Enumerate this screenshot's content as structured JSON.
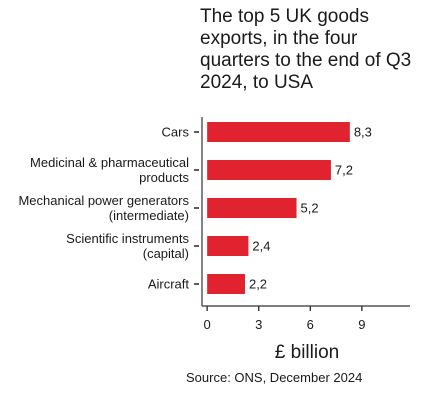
{
  "chart_data": {
    "type": "bar",
    "orientation": "horizontal",
    "title_lines": [
      "The top 5 UK goods",
      "exports, in the four",
      "quarters to the end of Q3",
      "2024, to USA"
    ],
    "categories": [
      [
        "Cars"
      ],
      [
        "Medicinal & pharmaceutical",
        "products"
      ],
      [
        "Mechanical power generators",
        "(intermediate)"
      ],
      [
        "Scientific instruments",
        "(capital)"
      ],
      [
        "Aircraft"
      ]
    ],
    "values": [
      8.3,
      7.2,
      5.2,
      2.4,
      2.2
    ],
    "data_labels": [
      "8,3",
      "7,2",
      "5,2",
      "2,4",
      "2,2"
    ],
    "xlabel": "£ billion",
    "xticks": [
      0,
      3,
      6,
      9
    ],
    "xlim": [
      -0.3,
      11.8
    ],
    "grid": false,
    "bar_color": "#e0232f",
    "source": "Source: ONS, December 2024"
  }
}
